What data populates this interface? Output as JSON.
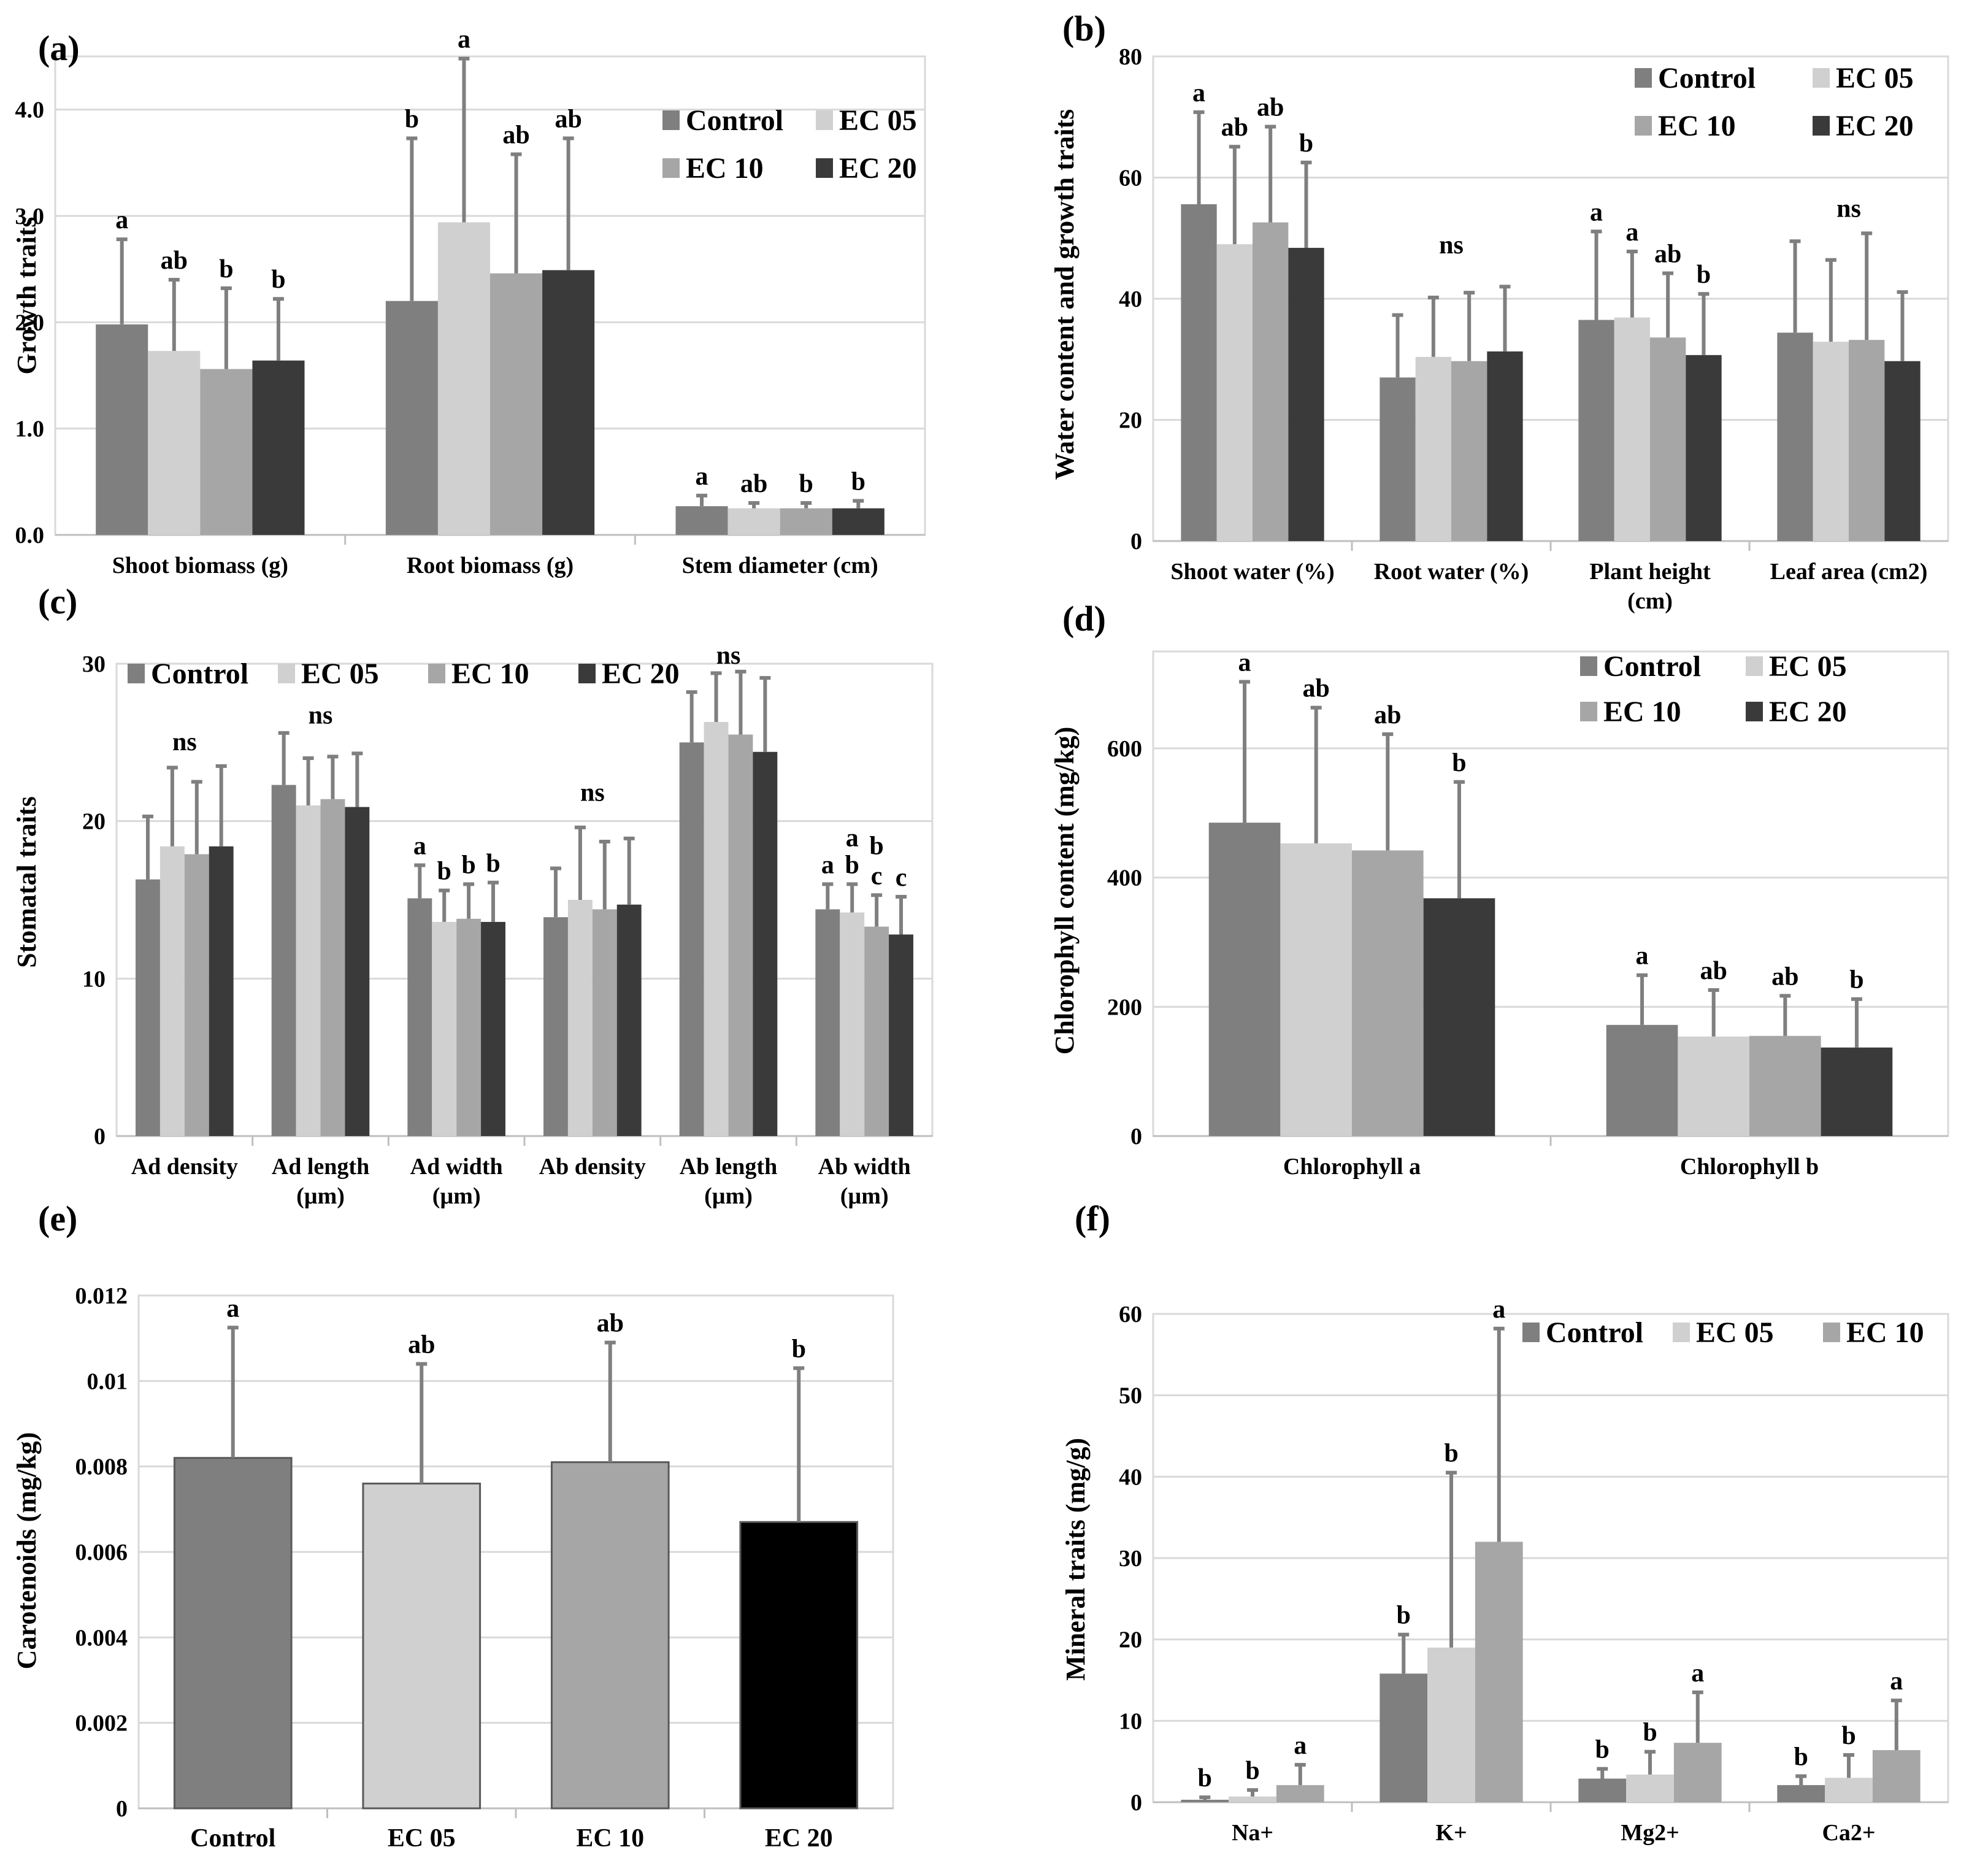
{
  "figure": {
    "colors": {
      "Control": "#7f7f7f",
      "EC 05": "#d0d0d0",
      "EC 10": "#a6a6a6",
      "EC 20": "#3a3a3a",
      "EC 20 (e)": "#000000",
      "error_bar": "#7f7f7f",
      "grid": "#d9d9d9"
    }
  },
  "chart_data": [
    {
      "id": "a",
      "type": "bar",
      "panel_label": "(a)",
      "ylabel": "Growth traits",
      "ylim": [
        0,
        4.5
      ],
      "yticks": [
        "0.0",
        "1.0",
        "2.0",
        "3.0",
        "4.0"
      ],
      "ytick_values": [
        0,
        1,
        2,
        3,
        4
      ],
      "categories": [
        "Shoot biomass (g)",
        "Root biomass (g)",
        "Stem diameter (cm)"
      ],
      "legend": [
        "Control",
        "EC 05",
        "EC 10",
        "EC 20"
      ],
      "legend_position": "top-right",
      "series": [
        {
          "name": "Control",
          "values": [
            1.98,
            2.2,
            0.27
          ],
          "errors": [
            0.8,
            1.53,
            0.1
          ],
          "letters": [
            "a",
            "b",
            "a"
          ]
        },
        {
          "name": "EC 05",
          "values": [
            1.73,
            2.94,
            0.25
          ],
          "errors": [
            0.67,
            1.54,
            0.05
          ],
          "letters": [
            "ab",
            "a",
            "ab"
          ]
        },
        {
          "name": "EC 10",
          "values": [
            1.56,
            2.46,
            0.25
          ],
          "errors": [
            0.76,
            1.12,
            0.05
          ],
          "letters": [
            "b",
            "ab",
            "b"
          ]
        },
        {
          "name": "EC 20",
          "values": [
            1.64,
            2.49,
            0.25
          ],
          "errors": [
            0.58,
            1.24,
            0.07
          ],
          "letters": [
            "b",
            "ab",
            "b"
          ]
        }
      ]
    },
    {
      "id": "b",
      "type": "bar",
      "panel_label": "(b)",
      "ylabel": "Water content and growth traits",
      "ylim": [
        0,
        80
      ],
      "yticks": [
        "0",
        "20",
        "40",
        "60",
        "80"
      ],
      "ytick_values": [
        0,
        20,
        40,
        60,
        80
      ],
      "categories": [
        "Shoot water (%)",
        "Root water (%)",
        "Plant height (cm)",
        "Leaf area (cm2)"
      ],
      "category_lines": [
        [
          "Shoot water (%)"
        ],
        [
          "Root water (%)"
        ],
        [
          "Plant height",
          "(cm)"
        ],
        [
          "Leaf area (cm2)"
        ]
      ],
      "legend": [
        "Control",
        "EC 05",
        "EC 10",
        "EC 20"
      ],
      "legend_position": "top-right",
      "series": [
        {
          "name": "Control",
          "values": [
            55.6,
            27.0,
            36.5,
            34.4
          ],
          "errors": [
            15.2,
            10.3,
            14.6,
            15.1
          ],
          "letters": [
            "a",
            "",
            "a",
            ""
          ]
        },
        {
          "name": "EC 05",
          "values": [
            49.0,
            30.4,
            36.9,
            32.9
          ],
          "errors": [
            16.1,
            9.8,
            10.9,
            13.5
          ],
          "letters": [
            "ab",
            "",
            "a",
            ""
          ]
        },
        {
          "name": "EC 10",
          "values": [
            52.6,
            29.7,
            33.6,
            33.2
          ],
          "errors": [
            15.8,
            11.3,
            10.6,
            17.6
          ],
          "letters": [
            "ab",
            "",
            "ab",
            ""
          ]
        },
        {
          "name": "EC 20",
          "values": [
            48.4,
            31.3,
            30.7,
            29.7
          ],
          "errors": [
            14.1,
            10.7,
            10.1,
            11.4
          ],
          "letters": [
            "b",
            "",
            "b",
            ""
          ]
        }
      ],
      "group_labels": [
        "",
        "ns",
        "",
        "ns"
      ],
      "group_label_values": [
        0,
        47.5,
        0,
        53.5
      ]
    },
    {
      "id": "c",
      "type": "bar",
      "panel_label": "(c)",
      "ylabel": "Stomatal traits",
      "ylim": [
        0,
        30
      ],
      "yticks": [
        "0",
        "10",
        "20",
        "30"
      ],
      "ytick_values": [
        0,
        10,
        20,
        30
      ],
      "categories": [
        "Ad density",
        "Ad length (µm)",
        "Ad width (µm)",
        "Ab density",
        "Ab length (µm)",
        "Ab width (µm)"
      ],
      "category_lines": [
        [
          "Ad density"
        ],
        [
          "Ad length",
          "(µm)"
        ],
        [
          "Ad width",
          "(µm)"
        ],
        [
          "Ab density"
        ],
        [
          "Ab length",
          "(µm)"
        ],
        [
          "Ab width",
          "(µm)"
        ]
      ],
      "legend": [
        "Control",
        "EC 05",
        "EC 10",
        "EC 20"
      ],
      "legend_position": "top-left",
      "series": [
        {
          "name": "Control",
          "values": [
            16.3,
            22.3,
            15.1,
            13.9,
            25.0,
            14.4
          ],
          "errors": [
            4.0,
            3.3,
            2.1,
            3.1,
            3.2,
            1.6
          ],
          "letters": [
            "",
            "",
            "a",
            "",
            "",
            "a"
          ]
        },
        {
          "name": "EC 05",
          "values": [
            18.4,
            21.0,
            13.6,
            15.0,
            26.3,
            14.2
          ],
          "errors": [
            5.0,
            3.0,
            2.0,
            4.6,
            3.1,
            1.8
          ],
          "letters": [
            "",
            "",
            "b",
            "",
            "",
            "b"
          ]
        },
        {
          "name": "EC 10",
          "values": [
            17.9,
            21.4,
            13.8,
            14.4,
            25.5,
            13.3
          ],
          "errors": [
            4.6,
            2.7,
            2.2,
            4.3,
            4.0,
            2.0
          ],
          "letters": [
            "",
            "",
            "b",
            "",
            "",
            "c"
          ]
        },
        {
          "name": "EC 20",
          "values": [
            18.4,
            20.9,
            13.6,
            14.7,
            24.4,
            12.8
          ],
          "errors": [
            5.1,
            3.4,
            2.5,
            4.2,
            4.7,
            2.4
          ],
          "letters": [
            "",
            "",
            "b",
            "",
            "",
            "c"
          ]
        }
      ],
      "group_labels": [
        "ns",
        "ns",
        "",
        "ns",
        "ns",
        ""
      ],
      "group_label_values": [
        24.5,
        26.2,
        0,
        21.3,
        30.0,
        0
      ],
      "extra_labels": [
        {
          "text": "a",
          "category": 5,
          "series": 1,
          "value": 18.4
        },
        {
          "text": "b",
          "category": 5,
          "series": 2,
          "value": 17.9
        }
      ]
    },
    {
      "id": "d",
      "type": "bar",
      "panel_label": "(d)",
      "ylabel": "Chlorophyll content (mg/kg)",
      "ylim": [
        0,
        750
      ],
      "yticks": [
        "0",
        "200",
        "400",
        "600"
      ],
      "ytick_values": [
        0,
        200,
        400,
        600
      ],
      "categories": [
        "Chlorophyll a",
        "Chlorophyll b"
      ],
      "legend": [
        "Control",
        "EC 05",
        "EC 10",
        "EC 20"
      ],
      "legend_position": "top-right",
      "series": [
        {
          "name": "Control",
          "values": [
            485,
            172
          ],
          "errors": [
            218,
            77
          ],
          "letters": [
            "a",
            "a"
          ]
        },
        {
          "name": "EC 05",
          "values": [
            453,
            154
          ],
          "errors": [
            210,
            72
          ],
          "letters": [
            "ab",
            "ab"
          ]
        },
        {
          "name": "EC 10",
          "values": [
            442,
            155
          ],
          "errors": [
            180,
            62
          ],
          "letters": [
            "ab",
            "ab"
          ]
        },
        {
          "name": "EC 20",
          "values": [
            368,
            137
          ],
          "errors": [
            180,
            75
          ],
          "letters": [
            "b",
            "b"
          ]
        }
      ]
    },
    {
      "id": "e",
      "type": "bar",
      "panel_label": "(e)",
      "ylabel": "Carotenoids (mg/kg)",
      "ylim": [
        0,
        0.012
      ],
      "yticks": [
        "0",
        "0.002",
        "0.004",
        "0.006",
        "0.008",
        "0.01",
        "0.012"
      ],
      "ytick_values": [
        0,
        0.002,
        0.004,
        0.006,
        0.008,
        0.01,
        0.012
      ],
      "categories": [
        "Control",
        "EC 05",
        "EC 10",
        "EC 20"
      ],
      "values": [
        0.0082,
        0.0076,
        0.0081,
        0.0067
      ],
      "errors": [
        0.00305,
        0.0028,
        0.0028,
        0.0036
      ],
      "letters": [
        "a",
        "ab",
        "ab",
        "b"
      ],
      "bar_colors": [
        "Control",
        "EC 05",
        "EC 10",
        "EC 20 (e)"
      ]
    },
    {
      "id": "f",
      "type": "bar",
      "panel_label": "(f)",
      "ylabel": "Mineral traits (mg/g)",
      "ylim": [
        0,
        60
      ],
      "yticks": [
        "0",
        "10",
        "20",
        "30",
        "40",
        "50",
        "60"
      ],
      "ytick_values": [
        0,
        10,
        20,
        30,
        40,
        50,
        60
      ],
      "categories": [
        "Na+",
        "K+",
        "Mg2+",
        "Ca2+"
      ],
      "legend": [
        "Control",
        "EC 05",
        "EC 10"
      ],
      "legend_position": "top-right",
      "series": [
        {
          "name": "Control",
          "values": [
            0.3,
            15.8,
            2.9,
            2.1
          ],
          "errors": [
            0.3,
            4.8,
            1.2,
            1.1
          ],
          "letters": [
            "b",
            "b",
            "b",
            "b"
          ]
        },
        {
          "name": "EC 05",
          "values": [
            0.7,
            19.0,
            3.4,
            3.0
          ],
          "errors": [
            0.8,
            21.5,
            2.8,
            2.8
          ],
          "letters": [
            "b",
            "b",
            "b",
            "b"
          ]
        },
        {
          "name": "EC 10",
          "values": [
            2.1,
            32.0,
            7.3,
            6.4
          ],
          "errors": [
            2.5,
            26.2,
            6.2,
            6.1
          ],
          "letters": [
            "a",
            "a",
            "a",
            "a"
          ]
        }
      ]
    }
  ]
}
